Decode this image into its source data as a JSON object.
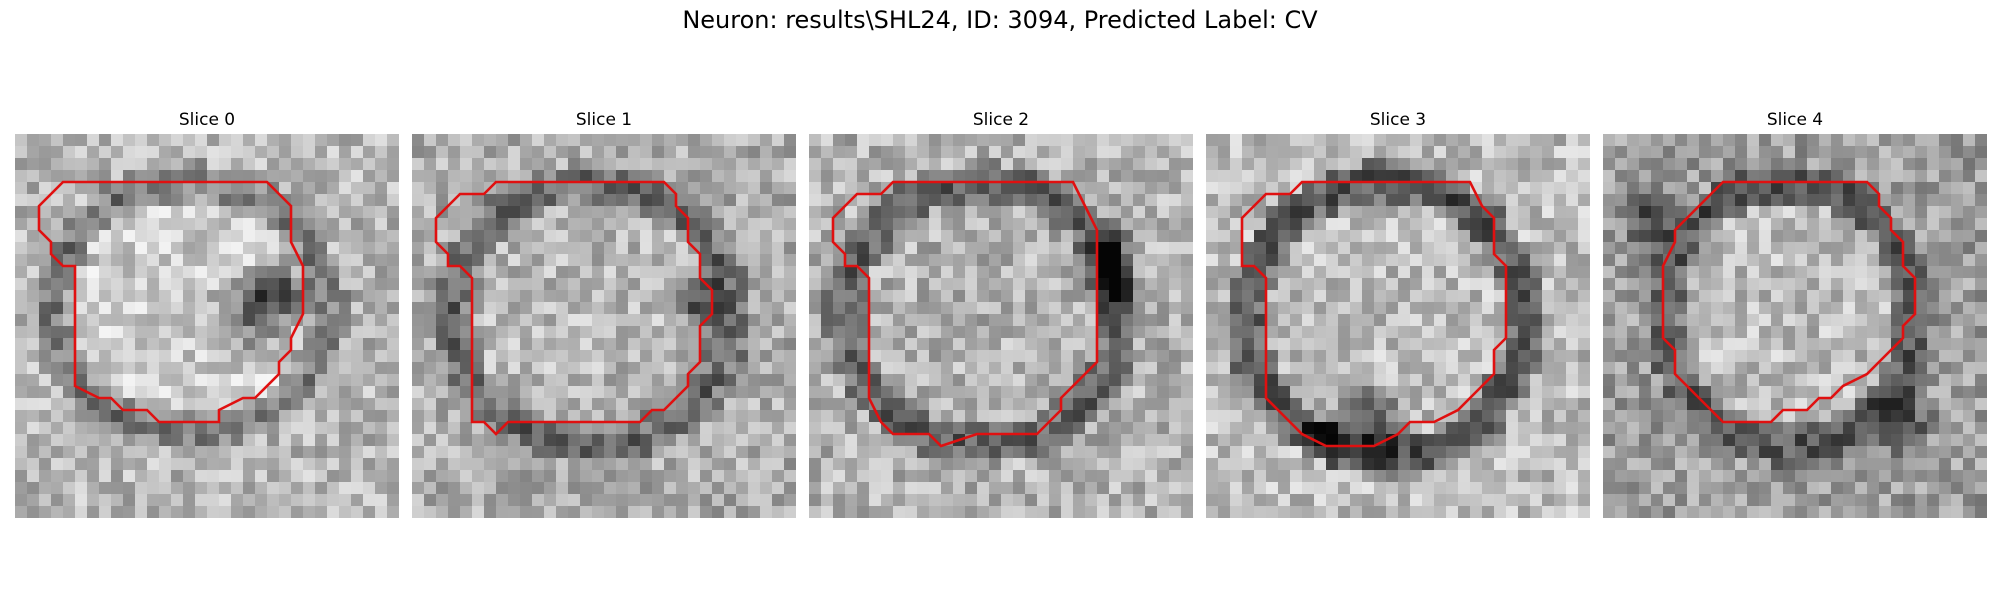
{
  "figure": {
    "title": "Neuron: results\\SHL24, ID: 3094, Predicted Label: CV"
  },
  "panels": [
    {
      "title": "Slice 0"
    },
    {
      "title": "Slice 1"
    },
    {
      "title": "Slice 2"
    },
    {
      "title": "Slice 3"
    },
    {
      "title": "Slice 4"
    }
  ],
  "contour_color": "#e01010"
}
